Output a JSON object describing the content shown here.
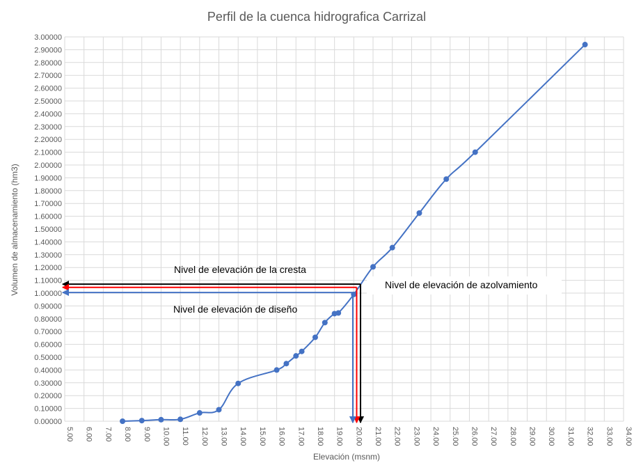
{
  "chart_data": {
    "type": "scatter",
    "title": "Perfil de la cuenca hidrografica Carrizal",
    "xlabel": "Elevación (msnm)",
    "ylabel": "Volumen de almacenamiento (hm3)",
    "xlim": [
      5,
      34
    ],
    "ylim": [
      0,
      3
    ],
    "grid": true,
    "xticks": [
      "5.00",
      "6.00",
      "7.00",
      "8.00",
      "9.00",
      "10.00",
      "11.00",
      "12.00",
      "13.00",
      "14.00",
      "15.00",
      "16.00",
      "17.00",
      "18.00",
      "19.00",
      "20.00",
      "21.00",
      "22.00",
      "23.00",
      "24.00",
      "25.00",
      "26.00",
      "27.00",
      "28.00",
      "29.00",
      "30.00",
      "31.00",
      "32.00",
      "33.00",
      "34.00"
    ],
    "yticks": [
      "0.00000",
      "0.10000",
      "0.20000",
      "0.30000",
      "0.40000",
      "0.50000",
      "0.60000",
      "0.70000",
      "0.80000",
      "0.90000",
      "1.00000",
      "1.10000",
      "1.20000",
      "1.30000",
      "1.40000",
      "1.50000",
      "1.60000",
      "1.70000",
      "1.80000",
      "1.90000",
      "2.00000",
      "2.10000",
      "2.20000",
      "2.30000",
      "2.40000",
      "2.50000",
      "2.60000",
      "2.70000",
      "2.80000",
      "2.90000",
      "3.00000"
    ],
    "series": [
      {
        "color": "#4472c4",
        "points": [
          [
            8.0,
            0.0
          ],
          [
            9.0,
            0.005
          ],
          [
            10.0,
            0.012
          ],
          [
            11.0,
            0.015
          ],
          [
            12.0,
            0.065
          ],
          [
            13.0,
            0.09
          ],
          [
            14.0,
            0.295
          ],
          [
            16.0,
            0.4
          ],
          [
            16.5,
            0.45
          ],
          [
            17.0,
            0.51
          ],
          [
            17.3,
            0.545
          ],
          [
            18.0,
            0.655
          ],
          [
            18.5,
            0.77
          ],
          [
            19.0,
            0.84
          ],
          [
            19.2,
            0.845
          ],
          [
            20.0,
            0.99
          ],
          [
            21.0,
            1.205
          ],
          [
            22.0,
            1.355
          ],
          [
            23.4,
            1.625
          ],
          [
            24.8,
            1.89
          ],
          [
            26.3,
            2.1
          ],
          [
            32.0,
            2.94
          ]
        ]
      }
    ],
    "annotations": [
      {
        "text": "Nivel de elevación de la cresta",
        "color": "#000000",
        "level_y": 1.07,
        "level_x": 20.35
      },
      {
        "text": "Nivel de elevación de azolvamiento",
        "color": "#ff0000",
        "level_y": 1.045,
        "level_x": 20.15
      },
      {
        "text": "Nivel de elevación de diseño",
        "color": "#4472c4",
        "level_y": 1.005,
        "level_x": 19.95
      }
    ]
  }
}
